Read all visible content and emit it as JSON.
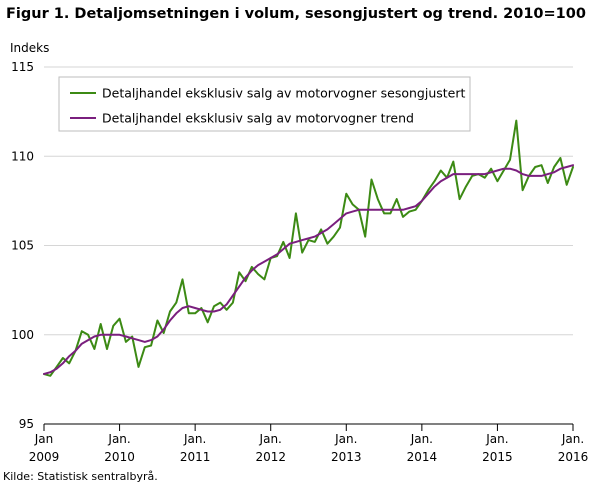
{
  "page": {
    "title": "Figur 1. Detaljomsetningen i volum, sesongjustert og trend. 2010=100",
    "source": "Kilde: Statistisk sentralbyrå."
  },
  "chart_data": {
    "type": "line",
    "title": "Figur 1. Detaljomsetningen i volum, sesongjustert og trend. 2010=100",
    "ylabel": "Indeks",
    "xlabel": "",
    "ylim": [
      95,
      115
    ],
    "yticks": [
      95,
      100,
      105,
      110,
      115
    ],
    "x_start": "2009-01",
    "x_end": "2016-01",
    "xticks": [
      {
        "month": "2009-01",
        "line1": "Jan",
        "line2": "2009"
      },
      {
        "month": "2010-01",
        "line1": "Jan.",
        "line2": "2010"
      },
      {
        "month": "2011-01",
        "line1": "Jan.",
        "line2": "2011"
      },
      {
        "month": "2012-01",
        "line1": "Jan.",
        "line2": "2012"
      },
      {
        "month": "2013-01",
        "line1": "Jan.",
        "line2": "2013"
      },
      {
        "month": "2014-01",
        "line1": "Jan.",
        "line2": "2014"
      },
      {
        "month": "2015-01",
        "line1": "Jan.",
        "line2": "2015"
      },
      {
        "month": "2016-01",
        "line1": "Jan.",
        "line2": "2016"
      }
    ],
    "grid": "horizontal",
    "legend_position": "top-left",
    "series": [
      {
        "name": "Detaljhandel eksklusiv salg av motorvogner sesongjustert",
        "color": "#3c8a14",
        "values": [
          97.8,
          97.7,
          98.2,
          98.7,
          98.4,
          99.1,
          100.2,
          100.0,
          99.2,
          100.6,
          99.2,
          100.5,
          100.9,
          99.6,
          99.9,
          98.2,
          99.3,
          99.4,
          100.8,
          100.1,
          101.3,
          101.8,
          103.1,
          101.2,
          101.2,
          101.5,
          100.7,
          101.6,
          101.8,
          101.4,
          101.8,
          103.5,
          103.0,
          103.8,
          103.4,
          103.1,
          104.3,
          104.4,
          105.2,
          104.3,
          106.8,
          104.6,
          105.3,
          105.2,
          105.9,
          105.1,
          105.5,
          106.0,
          107.9,
          107.3,
          107.0,
          105.5,
          108.7,
          107.6,
          106.8,
          106.8,
          107.6,
          106.6,
          106.9,
          107.0,
          107.5,
          108.1,
          108.6,
          109.2,
          108.8,
          109.7,
          107.6,
          108.3,
          108.9,
          109.0,
          108.8,
          109.3,
          108.6,
          109.2,
          109.8,
          112.0,
          108.1,
          108.9,
          109.4,
          109.5,
          108.5,
          109.4,
          109.9,
          108.4,
          109.4
        ]
      },
      {
        "name": "Detaljhandel eksklusiv salg av motorvogner trend",
        "color": "#7a1f7e",
        "values": [
          97.8,
          97.9,
          98.1,
          98.4,
          98.8,
          99.1,
          99.5,
          99.7,
          99.9,
          100.0,
          100.0,
          100.0,
          100.0,
          99.9,
          99.8,
          99.7,
          99.6,
          99.7,
          99.9,
          100.3,
          100.8,
          101.2,
          101.5,
          101.6,
          101.5,
          101.4,
          101.3,
          101.3,
          101.4,
          101.7,
          102.2,
          102.7,
          103.2,
          103.6,
          103.9,
          104.1,
          104.3,
          104.5,
          104.8,
          105.1,
          105.2,
          105.3,
          105.4,
          105.5,
          105.7,
          105.9,
          106.2,
          106.5,
          106.8,
          106.9,
          107.0,
          107.0,
          107.0,
          107.0,
          107.0,
          107.0,
          107.0,
          107.0,
          107.1,
          107.2,
          107.5,
          107.9,
          108.3,
          108.6,
          108.8,
          109.0,
          109.0,
          109.0,
          109.0,
          109.0,
          109.0,
          109.1,
          109.2,
          109.3,
          109.3,
          109.2,
          109.0,
          108.9,
          108.9,
          108.9,
          109.0,
          109.1,
          109.3,
          109.4,
          109.5
        ]
      }
    ]
  }
}
